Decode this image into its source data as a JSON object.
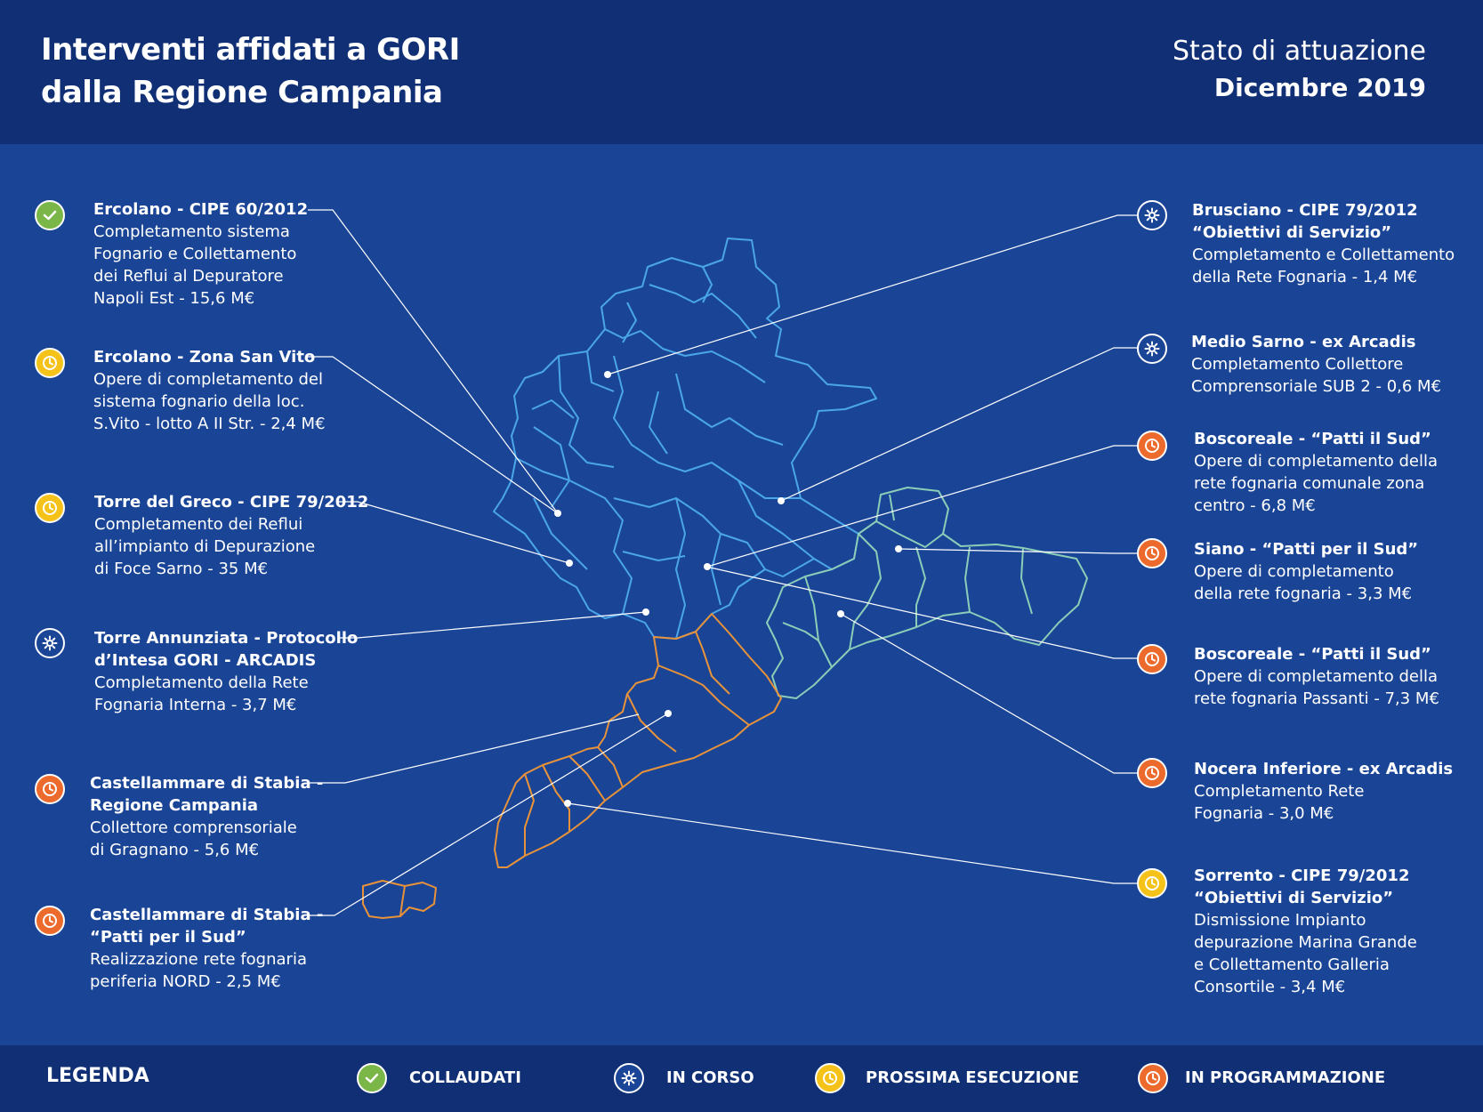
{
  "header": {
    "title_line1": "Interventi affidati a GORI",
    "title_line2": "dalla Regione Campania",
    "status_label": "Stato di attuazione",
    "status_date": "Dicembre 2019"
  },
  "status_colors": {
    "collaudati": "#7ab648",
    "in_corso": "#1a4597",
    "prossima_esecuzione": "#f5c21a",
    "in_programmazione": "#ec6a2c"
  },
  "map_colors": {
    "region_north": "#4aa6e8",
    "region_east": "#8ccdb8",
    "region_south": "#e8923a"
  },
  "interventions_left": [
    {
      "status": "collaudati",
      "icon": "check-icon",
      "title": "Ercolano - CIPE 60/2012",
      "desc": "Completamento sistema\nFognario e Collettamento\ndei Reflui al Depuratore\nNapoli Est - 15,6 M€"
    },
    {
      "status": "prossima_esecuzione",
      "icon": "clock-icon",
      "title": "Ercolano - Zona San Vito",
      "desc": "Opere di completamento del\nsistema fognario della loc.\nS.Vito - lotto A II Str. - 2,4 M€"
    },
    {
      "status": "prossima_esecuzione",
      "icon": "clock-icon",
      "title": "Torre del Greco - CIPE 79/2012",
      "desc": "Completamento dei Reflui\nall’impianto di Depurazione\ndi Foce Sarno - 35 M€"
    },
    {
      "status": "in_corso",
      "icon": "gear-icon",
      "title": "Torre Annunziata - Protocollo\nd’Intesa GORI - ARCADIS",
      "desc": "Completamento della Rete\nFognaria Interna - 3,7 M€"
    },
    {
      "status": "in_programmazione",
      "icon": "clock-icon",
      "title": "Castellammare di Stabia -\nRegione Campania",
      "desc": "Collettore comprensoriale\ndi Gragnano - 5,6 M€"
    },
    {
      "status": "in_programmazione",
      "icon": "clock-icon",
      "title": "Castellammare di Stabia -\n“Patti per il Sud”",
      "desc": "Realizzazione rete fognaria\nperiferia NORD - 2,5 M€"
    }
  ],
  "interventions_right": [
    {
      "status": "in_corso",
      "icon": "gear-icon",
      "title": "Brusciano - CIPE 79/2012\n“Obiettivi di Servizio”",
      "desc": "Completamento e Collettamento\ndella Rete Fognaria - 1,4 M€"
    },
    {
      "status": "in_corso",
      "icon": "gear-icon",
      "title": "Medio Sarno - ex Arcadis",
      "desc": "Completamento Collettore\nComprensoriale SUB 2 - 0,6 M€"
    },
    {
      "status": "in_programmazione",
      "icon": "clock-icon",
      "title": "Boscoreale - “Patti il Sud”",
      "desc": "Opere di completamento della\nrete fognaria comunale  zona\ncentro - 6,8 M€"
    },
    {
      "status": "in_programmazione",
      "icon": "clock-icon",
      "title": "Siano - “Patti per il Sud”",
      "desc": "Opere di completamento\ndella rete fognaria - 3,3 M€"
    },
    {
      "status": "in_programmazione",
      "icon": "clock-icon",
      "title": "Boscoreale - “Patti il Sud”",
      "desc": "Opere di completamento della\nrete fognaria Passanti - 7,3 M€"
    },
    {
      "status": "in_programmazione",
      "icon": "clock-icon",
      "title": "Nocera Inferiore - ex Arcadis",
      "desc": "Completamento Rete\nFognaria - 3,0 M€"
    },
    {
      "status": "prossima_esecuzione",
      "icon": "clock-icon",
      "title": "Sorrento - CIPE 79/2012\n“Obiettivi di Servizio”",
      "desc": "Dismissione Impianto\ndepurazione Marina Grande\ne Collettamento Galleria\nConsortile - 3,4 M€"
    }
  ],
  "legend": {
    "title": "LEGENDA",
    "items": [
      {
        "status": "collaudati",
        "icon": "check-icon",
        "label": "COLLAUDATI"
      },
      {
        "status": "in_corso",
        "icon": "gear-icon",
        "label": "IN CORSO"
      },
      {
        "status": "prossima_esecuzione",
        "icon": "clock-icon",
        "label": "PROSSIMA ESECUZIONE"
      },
      {
        "status": "in_programmazione",
        "icon": "clock-icon",
        "label": "IN PROGRAMMAZIONE"
      }
    ]
  }
}
